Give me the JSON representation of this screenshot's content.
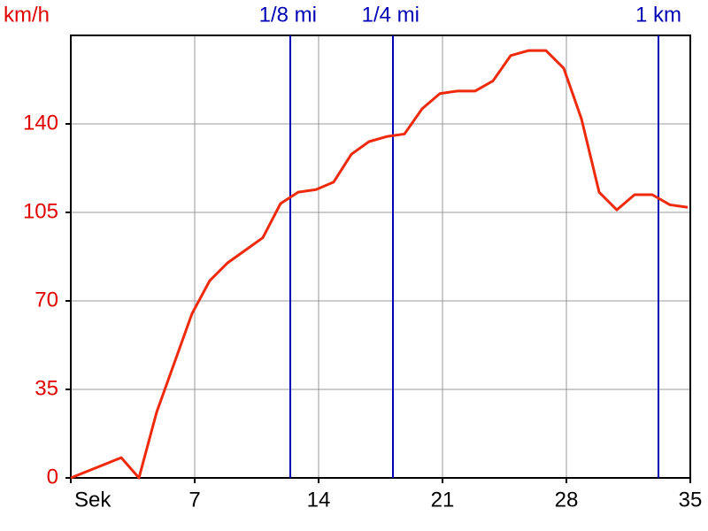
{
  "chart_data": {
    "type": "line",
    "y_label": "km/h",
    "x": [
      0,
      2.85,
      3.85,
      4.85,
      6.85,
      7.85,
      8.85,
      9.85,
      10.85,
      11.85,
      12.85,
      13.85,
      14.85,
      15.85,
      16.85,
      17.85,
      18.85,
      19.85,
      20.85,
      21.85,
      22.85,
      23.85,
      24.85,
      25.85,
      26.85,
      27.85,
      28.85,
      29.85,
      30.85,
      31.85,
      32.85,
      33.85,
      34.85
    ],
    "series": [
      {
        "color": "#ee2a0a",
        "values": [
          0,
          8,
          0,
          26,
          65,
          78,
          85,
          90,
          95,
          108.5,
          113,
          114,
          117,
          128,
          133,
          135,
          136,
          146,
          152,
          153,
          153,
          157,
          167,
          169,
          169,
          162,
          142,
          113,
          106,
          112,
          112,
          108,
          107
        ]
      }
    ],
    "xlim": [
      0,
      35
    ],
    "ylim": [
      0,
      175
    ],
    "xticks": [
      {
        "value": 0,
        "label": "Sek"
      },
      7,
      14,
      21,
      28,
      35
    ],
    "yticks": [
      0,
      35,
      70,
      105,
      140
    ],
    "grid": true,
    "tick_color": "#e00000",
    "marker_color": "#0000b4",
    "markers": [
      {
        "x": 12.4,
        "label": "1/8 mi"
      },
      {
        "x": 18.2,
        "label": "1/4 mi"
      },
      {
        "x": 33.2,
        "label": "1 km"
      }
    ]
  }
}
